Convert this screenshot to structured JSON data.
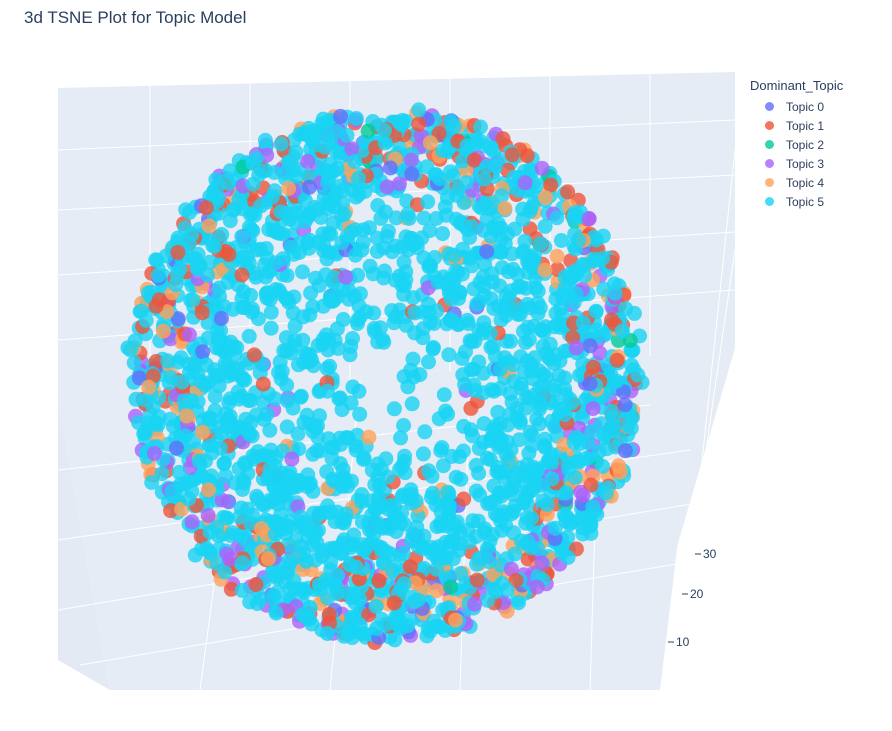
{
  "chart_data": {
    "type": "scatter",
    "title": "3d TSNE Plot for Topic Model",
    "legend_title": "Dominant_Topic",
    "legend_placement": "top-right",
    "grid": true,
    "series": [
      {
        "name": "Topic 0",
        "color": "#636efa"
      },
      {
        "name": "Topic 1",
        "color": "#ef553b"
      },
      {
        "name": "Topic 2",
        "color": "#00cc96"
      },
      {
        "name": "Topic 3",
        "color": "#ab63fa"
      },
      {
        "name": "Topic 4",
        "color": "#ffa15a"
      },
      {
        "name": "Topic 5",
        "color": "#19d3f3"
      }
    ],
    "z_ticks": [
      "30",
      "20",
      "10"
    ]
  }
}
